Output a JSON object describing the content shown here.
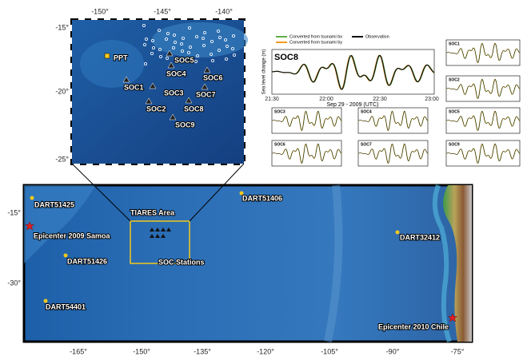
{
  "inset_map": {
    "lon_ticks": [
      "-150°",
      "-145°",
      "-140°"
    ],
    "lat_ticks": [
      "-15°",
      "-20°",
      "-25°"
    ],
    "labels": [
      "PPT",
      "SOC5",
      "SOC4",
      "SOC6",
      "SOC1",
      "SOC3",
      "SOC7",
      "SOC2",
      "SOC8",
      "SOC9"
    ]
  },
  "main_map": {
    "lon_ticks": [
      "-165°",
      "-150°",
      "-135°",
      "-120°",
      "-105°",
      "-90°",
      "-75°"
    ],
    "lat_ticks": [
      "-15°",
      "-30°"
    ],
    "labels": [
      "DART51425",
      "Epicenter 2009 Samoa",
      "TIARES Area",
      "SOC Stations",
      "DART51406",
      "DART51426",
      "DART32412",
      "DART54401",
      "Epicenter 2010 Chile"
    ]
  },
  "time_series": {
    "title": "SOC8",
    "legend": [
      "Converted from tsunami bx",
      "Converted from tsunami by",
      "Observation"
    ],
    "ylabel": "Sea level change (m)",
    "xticks": [
      "21:30",
      "22:00",
      "22:30",
      "23:00"
    ],
    "xlabel": "Sep 29 - 2009 (UTC)",
    "panels": [
      "SOC1",
      "SOC2",
      "SOC3",
      "SOC4",
      "SOC5",
      "SOC6",
      "SOC7",
      "SOC9"
    ]
  }
}
